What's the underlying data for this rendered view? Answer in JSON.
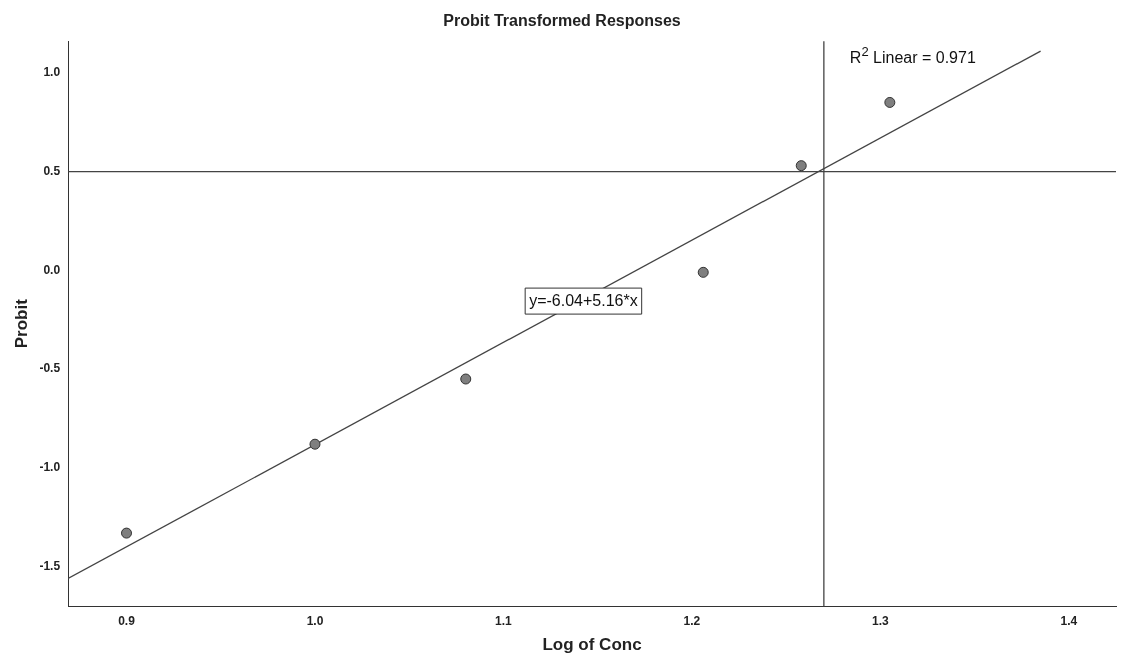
{
  "chart_data": {
    "type": "scatter",
    "title": "Probit Transformed Responses",
    "xlabel": "Log of Conc",
    "ylabel": "Probit",
    "xlim": [
      0.869,
      1.425
    ],
    "ylim": [
      -1.7,
      1.16
    ],
    "xticks": [
      {
        "value": 0.9,
        "label": "0.9"
      },
      {
        "value": 1.0,
        "label": "1.0"
      },
      {
        "value": 1.1,
        "label": "1.1"
      },
      {
        "value": 1.2,
        "label": "1.2"
      },
      {
        "value": 1.3,
        "label": "1.3"
      },
      {
        "value": 1.4,
        "label": "1.4"
      }
    ],
    "yticks": [
      {
        "value": -1.5,
        "label": "-1.5"
      },
      {
        "value": -1.0,
        "label": "-1.0"
      },
      {
        "value": -0.5,
        "label": "-0.5"
      },
      {
        "value": 0,
        "label": "0.0"
      },
      {
        "value": 0.5,
        "label": "0.5"
      },
      {
        "value": 1.0,
        "label": "1.0"
      }
    ],
    "grid": false,
    "legend": false,
    "marker": "circle",
    "series": [
      {
        "type": "scatter",
        "color": "#7f7f7f",
        "x": [
          0.9,
          1.0,
          1.08,
          1.206,
          1.258,
          1.305
        ],
        "values": [
          -1.33,
          -0.88,
          -0.55,
          -0.01,
          0.53,
          0.85
        ]
      },
      {
        "type": "line",
        "color": "#444444",
        "x": [
          0.869,
          1.385
        ],
        "values": [
          -1.56,
          1.11
        ],
        "marker": "none"
      }
    ],
    "ref_lines": [
      {
        "axis": "y",
        "value": 0.5,
        "color": "#444444"
      },
      {
        "axis": "x",
        "value": 1.27,
        "color": "#444444"
      }
    ],
    "annotations": [
      "R$^{2}$ Linear = 0.971",
      "y=-6.04+5.16*x"
    ]
  }
}
